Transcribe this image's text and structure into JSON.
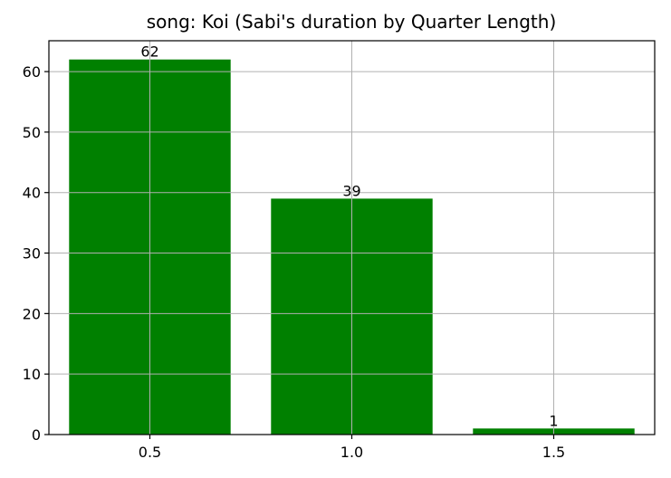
{
  "chart_data": {
    "type": "bar",
    "title": "song: Koi (Sabi's duration by Quarter Length)",
    "xlabel": "",
    "ylabel": "",
    "categories": [
      "0.5",
      "1.0",
      "1.5"
    ],
    "values": [
      62,
      39,
      1
    ],
    "data_labels": [
      "62",
      "39",
      "1"
    ],
    "yticks": [
      0,
      10,
      20,
      30,
      40,
      50,
      60
    ],
    "ylim": [
      0,
      65.1
    ],
    "grid": true,
    "legend": "none",
    "bar_color": "#008000"
  }
}
